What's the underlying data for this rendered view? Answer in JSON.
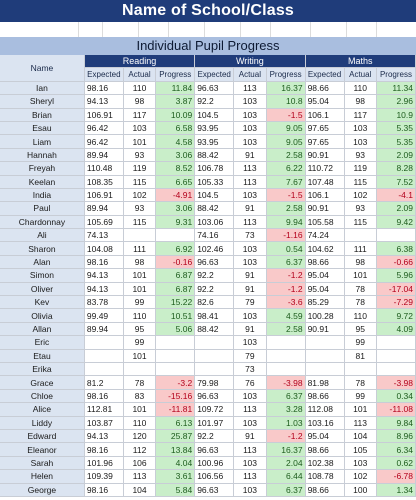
{
  "header": {
    "title": "Name of School/Class",
    "subtitle": "Individual Pupil Progress"
  },
  "table": {
    "name_header": "Name",
    "subjects": [
      "Reading",
      "Writing",
      "Maths"
    ],
    "col_headers": [
      "Expected",
      "Actual",
      "Progress"
    ],
    "rows": [
      {
        "name": "Ian",
        "cells": [
          [
            "98.16",
            "110",
            "11.84"
          ],
          [
            "96.63",
            "113",
            "16.37"
          ],
          [
            "98.66",
            "110",
            "11.34"
          ]
        ]
      },
      {
        "name": "Sheryl",
        "cells": [
          [
            "94.13",
            "98",
            "3.87"
          ],
          [
            "92.2",
            "103",
            "10.8"
          ],
          [
            "95.04",
            "98",
            "2.96"
          ]
        ]
      },
      {
        "name": "Brian",
        "cells": [
          [
            "106.91",
            "117",
            "10.09"
          ],
          [
            "104.5",
            "103",
            "-1.5"
          ],
          [
            "106.1",
            "117",
            "10.9"
          ]
        ]
      },
      {
        "name": "Esau",
        "cells": [
          [
            "96.42",
            "103",
            "6.58"
          ],
          [
            "93.95",
            "103",
            "9.05"
          ],
          [
            "97.65",
            "103",
            "5.35"
          ]
        ]
      },
      {
        "name": "Liam",
        "cells": [
          [
            "96.42",
            "101",
            "4.58"
          ],
          [
            "93.95",
            "103",
            "9.05"
          ],
          [
            "97.65",
            "103",
            "5.35"
          ]
        ]
      },
      {
        "name": "Hannah",
        "cells": [
          [
            "89.94",
            "93",
            "3.06"
          ],
          [
            "88.42",
            "91",
            "2.58"
          ],
          [
            "90.91",
            "93",
            "2.09"
          ]
        ]
      },
      {
        "name": "Freyah",
        "cells": [
          [
            "110.48",
            "119",
            "8.52"
          ],
          [
            "106.78",
            "113",
            "6.22"
          ],
          [
            "110.72",
            "119",
            "8.28"
          ]
        ]
      },
      {
        "name": "Keelan",
        "cells": [
          [
            "108.35",
            "115",
            "6.65"
          ],
          [
            "105.33",
            "113",
            "7.67"
          ],
          [
            "107.48",
            "115",
            "7.52"
          ]
        ]
      },
      {
        "name": "India",
        "cells": [
          [
            "106.91",
            "102",
            "-4.91"
          ],
          [
            "104.5",
            "103",
            "-1.5"
          ],
          [
            "106.1",
            "102",
            "-4.1"
          ]
        ]
      },
      {
        "name": "Paul",
        "cells": [
          [
            "89.94",
            "93",
            "3.06"
          ],
          [
            "88.42",
            "91",
            "2.58"
          ],
          [
            "90.91",
            "93",
            "2.09"
          ]
        ]
      },
      {
        "name": "Chardonnay",
        "cells": [
          [
            "105.69",
            "115",
            "9.31"
          ],
          [
            "103.06",
            "113",
            "9.94"
          ],
          [
            "105.58",
            "115",
            "9.42"
          ]
        ]
      },
      {
        "name": "Ali",
        "cells": [
          [
            "74.13",
            "",
            ""
          ],
          [
            "74.16",
            "73",
            "-1.16"
          ],
          [
            "74.24",
            "",
            ""
          ]
        ]
      },
      {
        "name": "Sharon",
        "cells": [
          [
            "104.08",
            "111",
            "6.92"
          ],
          [
            "102.46",
            "103",
            "0.54"
          ],
          [
            "104.62",
            "111",
            "6.38"
          ]
        ]
      },
      {
        "name": "Alan",
        "cells": [
          [
            "98.16",
            "98",
            "-0.16"
          ],
          [
            "96.63",
            "103",
            "6.37"
          ],
          [
            "98.66",
            "98",
            "-0.66"
          ]
        ]
      },
      {
        "name": "Simon",
        "cells": [
          [
            "94.13",
            "101",
            "6.87"
          ],
          [
            "92.2",
            "91",
            "-1.2"
          ],
          [
            "95.04",
            "101",
            "5.96"
          ]
        ]
      },
      {
        "name": "Oliver",
        "cells": [
          [
            "94.13",
            "101",
            "6.87"
          ],
          [
            "92.2",
            "91",
            "-1.2"
          ],
          [
            "95.04",
            "78",
            "-17.04"
          ]
        ]
      },
      {
        "name": "Kev",
        "cells": [
          [
            "83.78",
            "99",
            "15.22"
          ],
          [
            "82.6",
            "79",
            "-3.6"
          ],
          [
            "85.29",
            "78",
            "-7.29"
          ]
        ]
      },
      {
        "name": "Olivia",
        "cells": [
          [
            "99.49",
            "110",
            "10.51"
          ],
          [
            "98.41",
            "103",
            "4.59"
          ],
          [
            "100.28",
            "110",
            "9.72"
          ]
        ]
      },
      {
        "name": "Allan",
        "cells": [
          [
            "89.94",
            "95",
            "5.06"
          ],
          [
            "88.42",
            "91",
            "2.58"
          ],
          [
            "90.91",
            "95",
            "4.09"
          ]
        ]
      },
      {
        "name": "Eric",
        "cells": [
          [
            "",
            "99",
            ""
          ],
          [
            "",
            "103",
            ""
          ],
          [
            "",
            "99",
            ""
          ]
        ]
      },
      {
        "name": "Etau",
        "cells": [
          [
            "",
            "101",
            ""
          ],
          [
            "",
            "79",
            ""
          ],
          [
            "",
            "81",
            ""
          ]
        ]
      },
      {
        "name": "Erika",
        "cells": [
          [
            "",
            "",
            ""
          ],
          [
            "",
            "73",
            ""
          ],
          [
            "",
            "",
            ""
          ]
        ]
      },
      {
        "name": "Grace",
        "cells": [
          [
            "81.2",
            "78",
            "-3.2"
          ],
          [
            "79.98",
            "76",
            "-3.98"
          ],
          [
            "81.98",
            "78",
            "-3.98"
          ]
        ]
      },
      {
        "name": "Chloe",
        "cells": [
          [
            "98.16",
            "83",
            "-15.16"
          ],
          [
            "96.63",
            "103",
            "6.37"
          ],
          [
            "98.66",
            "99",
            "0.34"
          ]
        ]
      },
      {
        "name": "Alice",
        "cells": [
          [
            "112.81",
            "101",
            "-11.81"
          ],
          [
            "109.72",
            "113",
            "3.28"
          ],
          [
            "112.08",
            "101",
            "-11.08"
          ]
        ]
      },
      {
        "name": "Liddy",
        "cells": [
          [
            "103.87",
            "110",
            "6.13"
          ],
          [
            "101.97",
            "103",
            "1.03"
          ],
          [
            "103.16",
            "113",
            "9.84"
          ]
        ]
      },
      {
        "name": "Edward",
        "cells": [
          [
            "94.13",
            "120",
            "25.87"
          ],
          [
            "92.2",
            "91",
            "-1.2"
          ],
          [
            "95.04",
            "104",
            "8.96"
          ]
        ]
      },
      {
        "name": "Eleanor",
        "cells": [
          [
            "98.16",
            "112",
            "13.84"
          ],
          [
            "96.63",
            "113",
            "16.37"
          ],
          [
            "98.66",
            "105",
            "6.34"
          ]
        ]
      },
      {
        "name": "Sarah",
        "cells": [
          [
            "101.96",
            "106",
            "4.04"
          ],
          [
            "100.96",
            "103",
            "2.04"
          ],
          [
            "102.38",
            "103",
            "0.62"
          ]
        ]
      },
      {
        "name": "Helen",
        "cells": [
          [
            "109.39",
            "113",
            "3.61"
          ],
          [
            "106.56",
            "113",
            "6.44"
          ],
          [
            "108.78",
            "102",
            "-6.78"
          ]
        ]
      },
      {
        "name": "George",
        "cells": [
          [
            "98.16",
            "104",
            "5.84"
          ],
          [
            "96.63",
            "103",
            "6.37"
          ],
          [
            "98.66",
            "100",
            "1.34"
          ]
        ]
      }
    ]
  }
}
